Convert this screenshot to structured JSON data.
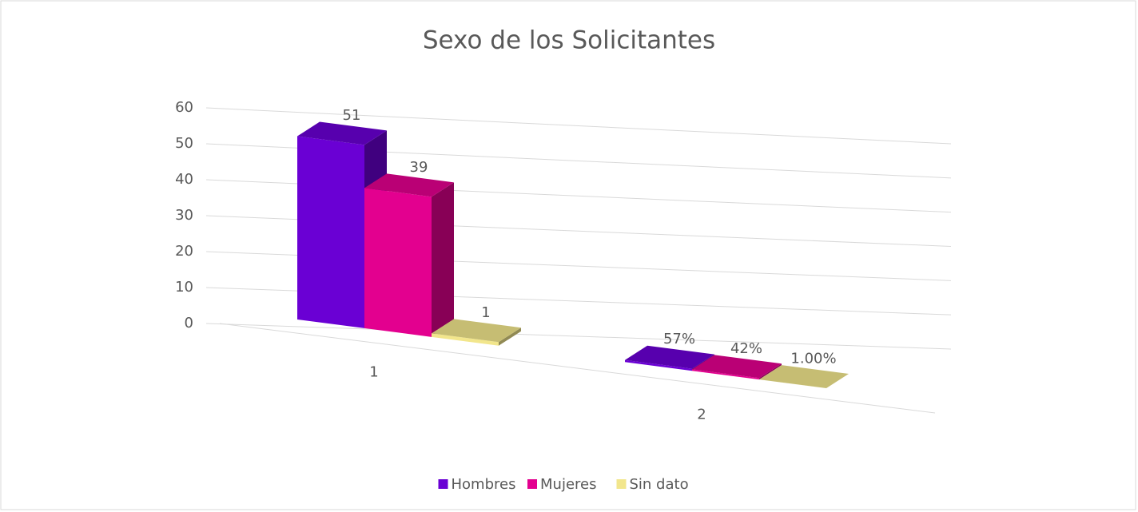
{
  "chart_data": {
    "type": "bar3d",
    "title": "Sexo de los Solicitantes",
    "categories": [
      "1",
      "2"
    ],
    "series": [
      {
        "name": "Hombres",
        "color": "#6a00d4",
        "values": [
          51,
          0.57
        ],
        "value_labels": [
          "51",
          "57%"
        ]
      },
      {
        "name": "Mujeres",
        "color": "#e3008f",
        "values": [
          39,
          0.42
        ],
        "value_labels": [
          "39",
          "42%"
        ]
      },
      {
        "name": "Sin dato",
        "color": "#f2e68c",
        "values": [
          1,
          0.01
        ],
        "value_labels": [
          "1",
          "1.00%"
        ]
      }
    ],
    "ylim": [
      0,
      60
    ],
    "yticks": [
      0,
      10,
      20,
      30,
      40,
      50,
      60
    ],
    "grid": true,
    "legend": "bottom"
  }
}
